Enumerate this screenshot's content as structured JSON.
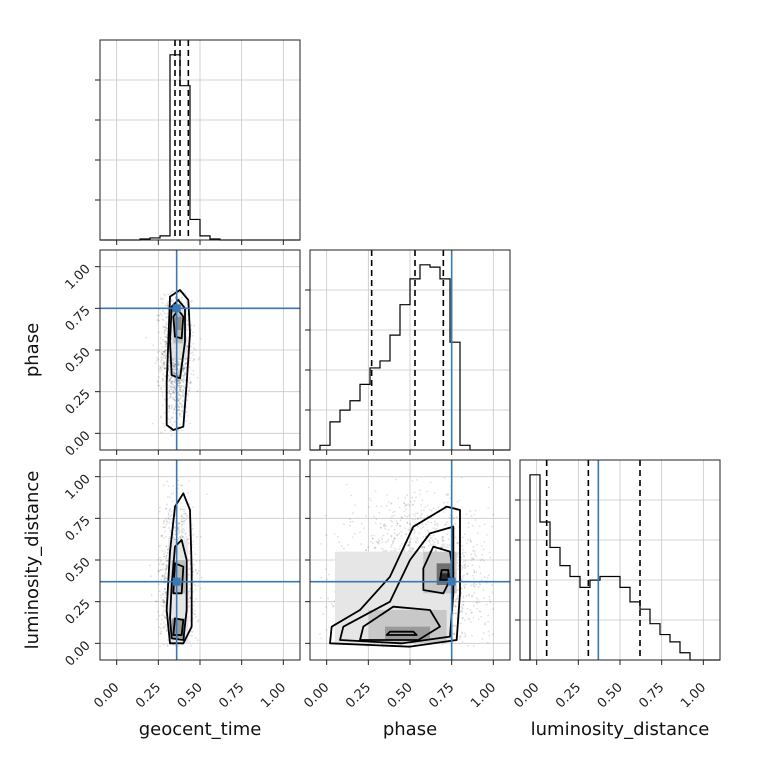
{
  "chart_data": {
    "type": "corner",
    "parameters": [
      "geocent_time",
      "phase",
      "luminosity_distance"
    ],
    "axis_range": [
      -0.1,
      1.1
    ],
    "tick_labels": [
      "0.00",
      "0.25",
      "0.50",
      "0.75",
      "1.00"
    ],
    "tick_values": [
      0.0,
      0.25,
      0.5,
      0.75,
      1.0
    ],
    "grid": true,
    "truth_color": "#3a78b4",
    "histogram_color": "#000000",
    "truths": {
      "geocent_time": 0.36,
      "phase": 0.75,
      "luminosity_distance": 0.37
    },
    "quantiles": {
      "geocent_time": [
        0.35,
        0.38,
        0.43
      ],
      "phase": [
        0.27,
        0.53,
        0.7
      ],
      "luminosity_distance": [
        0.06,
        0.31,
        0.62
      ]
    },
    "histograms": {
      "geocent_time": {
        "edges": [
          -0.1,
          -0.04,
          0.02,
          0.08,
          0.14,
          0.2,
          0.26,
          0.32,
          0.38,
          0.44,
          0.5,
          0.56,
          0.62,
          0.68,
          0.74,
          0.8,
          0.86,
          0.92,
          0.98,
          1.04,
          1.1
        ],
        "counts": [
          0,
          0,
          0,
          0,
          0.5,
          1,
          2,
          90,
          75,
          10,
          2,
          0.5,
          0,
          0,
          0,
          0,
          0,
          0,
          0,
          0
        ]
      },
      "phase": {
        "edges": [
          -0.1,
          -0.04,
          0.02,
          0.08,
          0.14,
          0.2,
          0.26,
          0.32,
          0.38,
          0.44,
          0.5,
          0.56,
          0.62,
          0.68,
          0.74,
          0.8,
          0.86,
          0.92,
          0.98,
          1.04,
          1.1
        ],
        "counts": [
          0,
          2,
          12,
          17,
          21,
          28,
          35,
          38,
          49,
          62,
          73,
          79,
          78,
          73,
          46,
          2,
          0,
          0,
          0,
          0
        ]
      },
      "luminosity_distance": {
        "edges": [
          -0.1,
          -0.04,
          0.02,
          0.08,
          0.14,
          0.2,
          0.26,
          0.32,
          0.38,
          0.44,
          0.5,
          0.56,
          0.62,
          0.68,
          0.74,
          0.8,
          0.86,
          0.92,
          0.98,
          1.04,
          1.1
        ],
        "counts": [
          0,
          51,
          38,
          31,
          26,
          23,
          20,
          22,
          23,
          23,
          20,
          16,
          14,
          10,
          7,
          5,
          2,
          0,
          0,
          0
        ]
      }
    },
    "joint_pairs": [
      {
        "x": "geocent_time",
        "y": "phase"
      },
      {
        "x": "geocent_time",
        "y": "luminosity_distance"
      },
      {
        "x": "phase",
        "y": "luminosity_distance"
      }
    ]
  }
}
